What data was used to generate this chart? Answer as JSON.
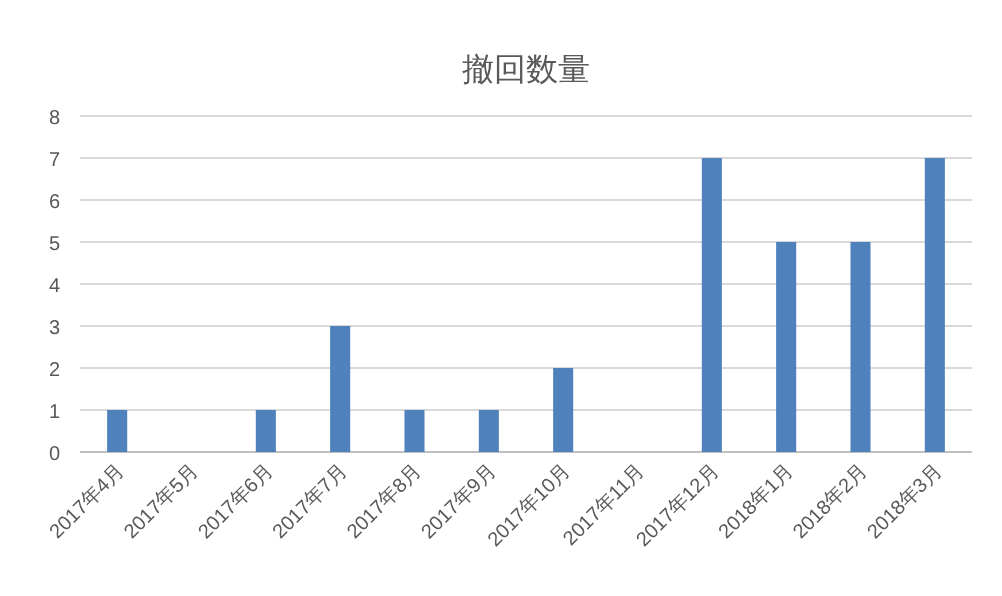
{
  "chart_data": {
    "type": "bar",
    "title": "撤回数量",
    "categories": [
      "2017年4月",
      "2017年5月",
      "2017年6月",
      "2017年7月",
      "2017年8月",
      "2017年9月",
      "2017年10月",
      "2017年11月",
      "2017年12月",
      "2018年1月",
      "2018年2月",
      "2018年3月"
    ],
    "values": [
      1,
      0,
      1,
      3,
      1,
      1,
      2,
      0,
      7,
      5,
      5,
      7
    ],
    "color": "#4f81bd",
    "ylim": [
      0,
      8
    ],
    "yticks": [
      0,
      1,
      2,
      3,
      4,
      5,
      6,
      7,
      8
    ],
    "grid": "y"
  }
}
